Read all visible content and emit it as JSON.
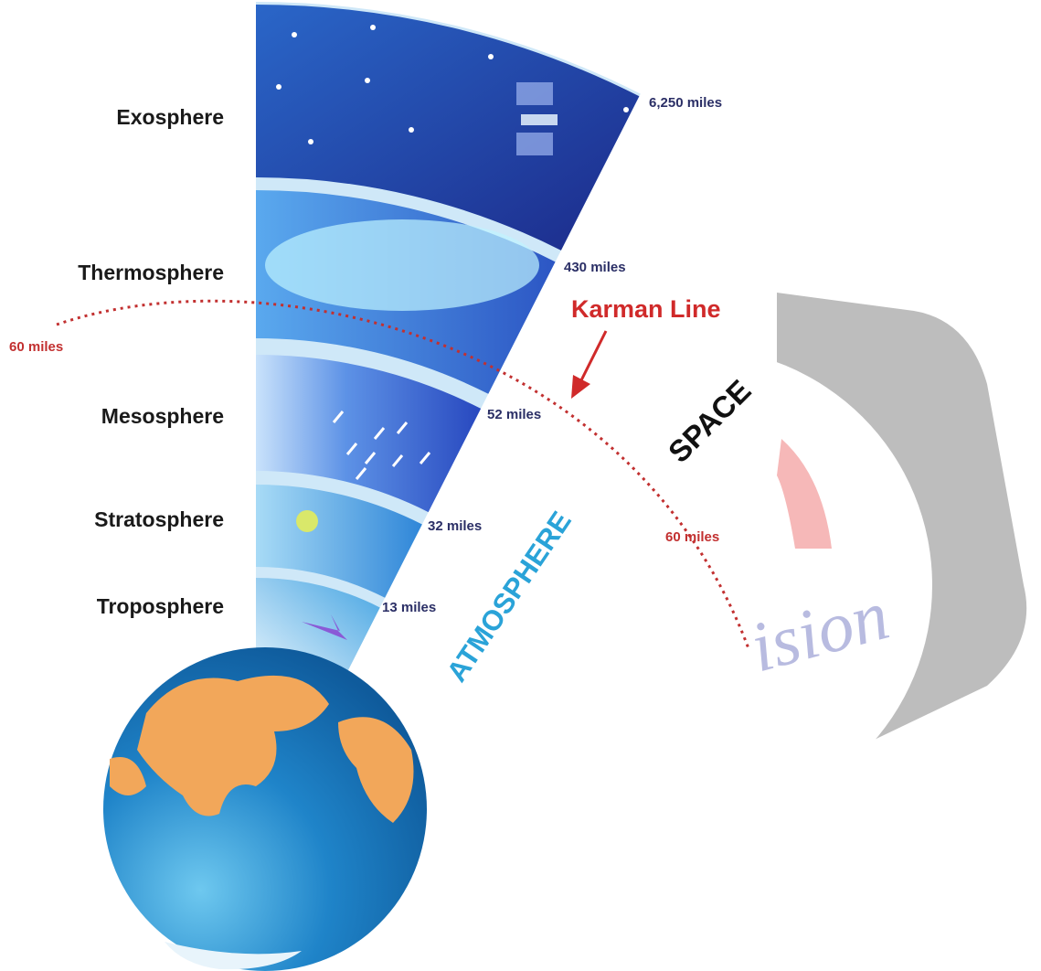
{
  "layers": [
    {
      "name": "Exosphere",
      "altitude": "6,250 miles"
    },
    {
      "name": "Thermosphere",
      "altitude": "430 miles"
    },
    {
      "name": "Mesosphere",
      "altitude": "52 miles"
    },
    {
      "name": "Stratosphere",
      "altitude": "32 miles"
    },
    {
      "name": "Troposphere",
      "altitude": "13 miles"
    }
  ],
  "karman_line": {
    "label": "Karman Line",
    "altitude_labels": [
      "60 miles",
      "60 miles"
    ]
  },
  "regions": {
    "space": "SPACE",
    "atmosphere": "ATMOSPHERE"
  },
  "watermark": "ision"
}
